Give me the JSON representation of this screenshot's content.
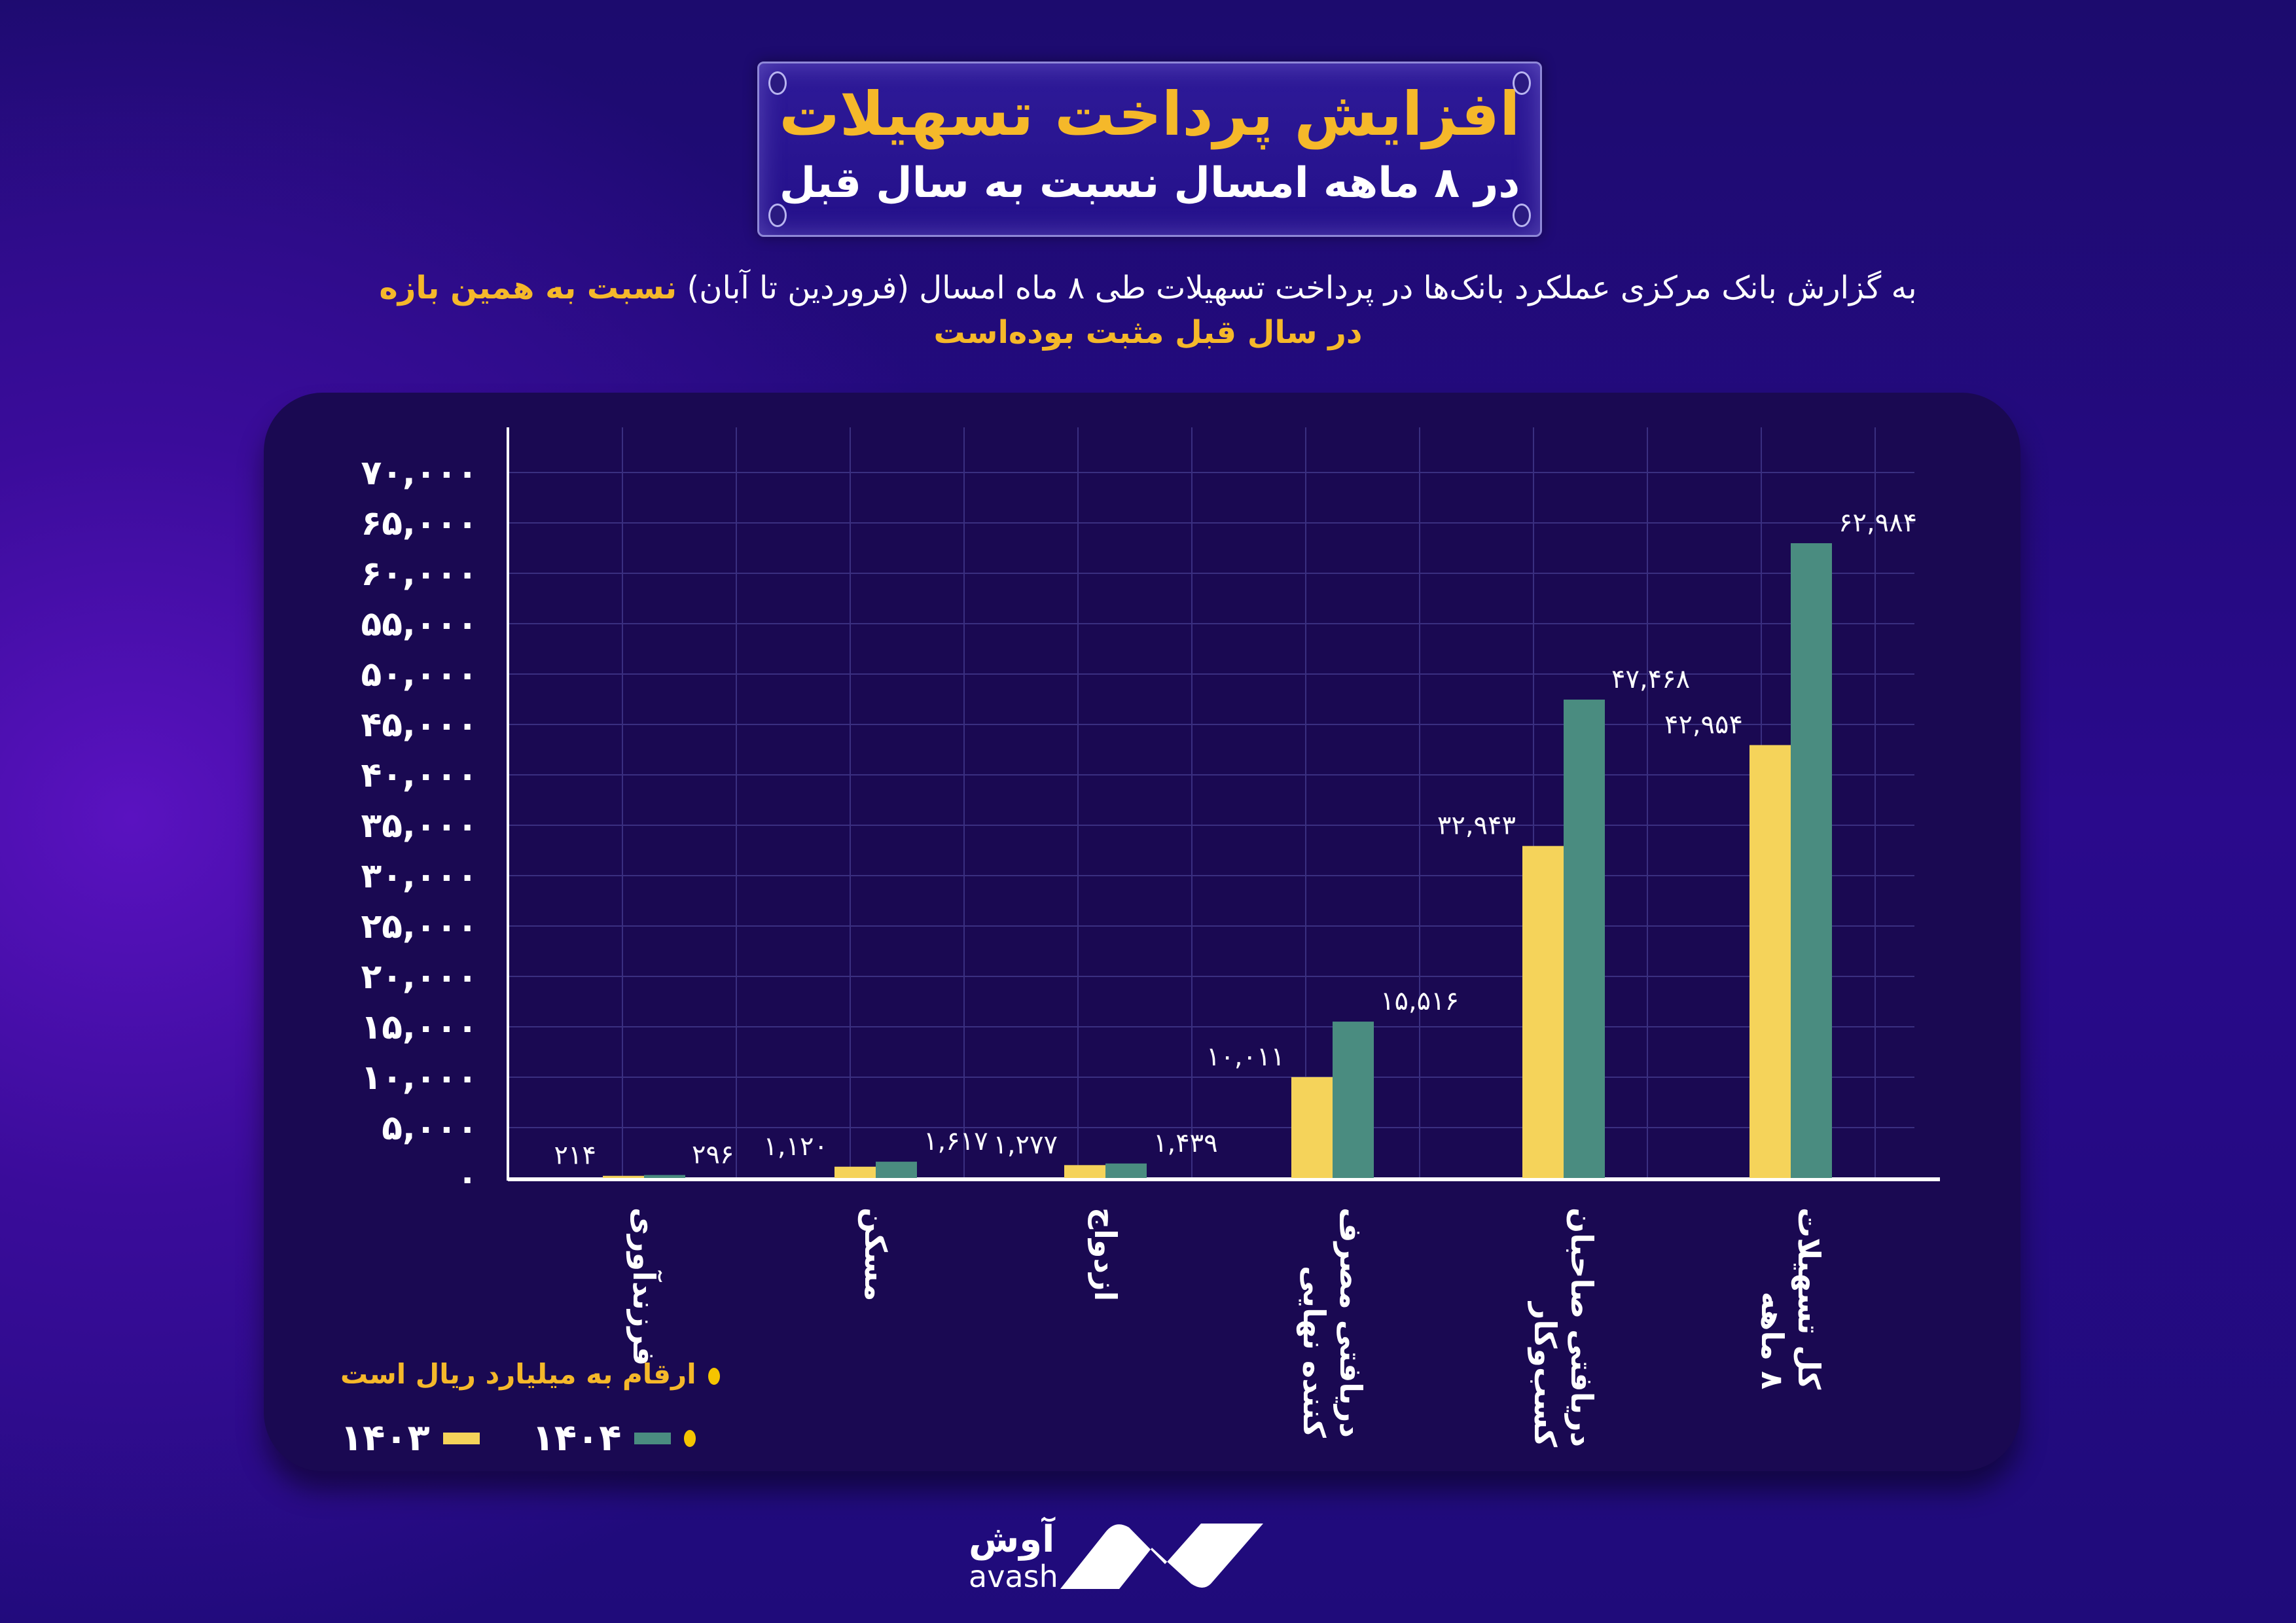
{
  "header": {
    "title": "افزایش پرداخت تسهیلات",
    "subtitle": "در ۸ ماهه امسال نسبت به سال قبل"
  },
  "intro": {
    "line1_plain": "به گزارش بانک مرکزی عملکرد بانک‌ها در پرداخت تسهیلات طی ۸ ماه امسال (فروردین تا آبان) ",
    "line1_highlight": "نسبت به همین بازه",
    "line2_highlight": "در سال قبل مثبت بوده‌است"
  },
  "chart_data": {
    "type": "bar",
    "title": "",
    "xlabel": "",
    "ylabel": "",
    "ylim": [
      0,
      70000
    ],
    "grid": true,
    "yticks": [
      0,
      5000,
      10000,
      15000,
      20000,
      25000,
      30000,
      35000,
      40000,
      45000,
      50000,
      55000,
      60000,
      65000,
      70000
    ],
    "ytick_labels": [
      "۰",
      "۵,۰۰۰",
      "۱۰,۰۰۰",
      "۱۵,۰۰۰",
      "۲۰,۰۰۰",
      "۲۵,۰۰۰",
      "۳۰,۰۰۰",
      "۳۵,۰۰۰",
      "۴۰,۰۰۰",
      "۴۵,۰۰۰",
      "۵۰,۰۰۰",
      "۵۵,۰۰۰",
      "۶۰,۰۰۰",
      "۶۵,۰۰۰",
      "۷۰,۰۰۰"
    ],
    "categories": [
      "فرزندآوری",
      "مسکن",
      "ازدواج",
      "دریافتی مصرف کننده نهایی",
      "دریافتی صاحبان کسب‌وکار",
      "کل تسهیلات ۸ ماهه"
    ],
    "category_lines": [
      [
        "فرزندآوری"
      ],
      [
        "مسکن"
      ],
      [
        "ازدواج"
      ],
      [
        "دریافتی مصرف",
        "کننده نهایی"
      ],
      [
        "دریافتی صاحبان",
        "کسب‌وکار"
      ],
      [
        "کل تسهیلات",
        "۸ ماهه"
      ]
    ],
    "series": [
      {
        "name": "۱۴۰۳",
        "color": "#f5d35a",
        "values": [
          214,
          1120,
          1277,
          10011,
          32943,
          42954
        ],
        "labels": [
          "۲۱۴",
          "۱,۱۲۰",
          "۱,۲۷۷",
          "۱۰,۰۱۱",
          "۳۲,۹۴۳",
          "۴۲,۹۵۴"
        ]
      },
      {
        "name": "۱۴۰۴",
        "color": "#4a8c80",
        "values": [
          296,
          1617,
          1439,
          15516,
          47468,
          62984
        ],
        "labels": [
          "۲۹۶",
          "۱,۶۱۷",
          "۱,۴۳۹",
          "۱۵,۵۱۶",
          "۴۷,۴۶۸",
          "۶۲,۹۸۴"
        ]
      }
    ],
    "legend_placement": "bottom-left",
    "note": "ارقام به میلیارد ریال است"
  },
  "logo": {
    "fa": "آوش",
    "en": "avash"
  },
  "colors": {
    "title": "#f5b82a",
    "panel": "#1a0952",
    "axis": "#ffffff",
    "grid": "#3a2f80"
  }
}
